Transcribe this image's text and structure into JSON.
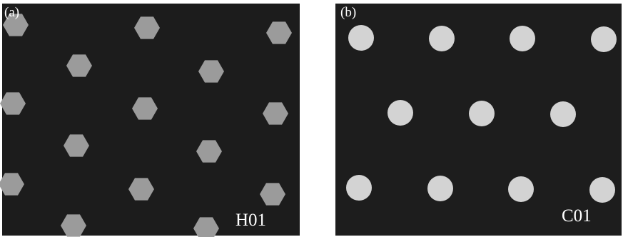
{
  "panels": [
    {
      "label": "(a)",
      "sample": "H01"
    },
    {
      "label": "(b)",
      "sample": "C01"
    }
  ]
}
